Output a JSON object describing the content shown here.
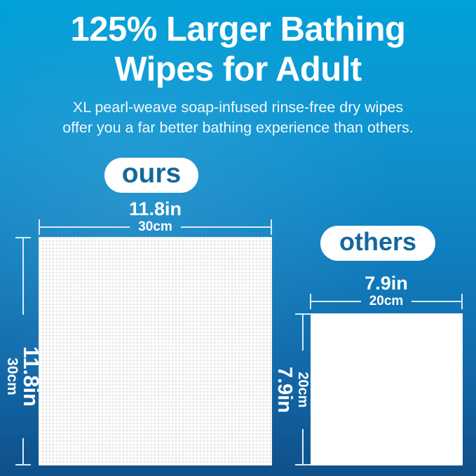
{
  "header": {
    "title_lines": [
      "125% Larger Bathing",
      "Wipes for Adult"
    ],
    "subtitle_lines": [
      "XL pearl-weave soap-infused rinse-free dry wipes",
      "offer you a far better bathing experience than others."
    ]
  },
  "ours": {
    "label": "ours",
    "width": {
      "inches": "11.8in",
      "metric": "30cm"
    },
    "height": {
      "inches": "11.8in",
      "metric": "30cm"
    }
  },
  "others": {
    "label": "others",
    "width": {
      "inches": "7.9in",
      "metric": "20cm"
    },
    "height": {
      "inches": "7.9in",
      "metric": "20cm"
    }
  },
  "colors": {
    "background_top": "#01a1d9",
    "background_bottom": "#0f5089",
    "badge_background": "#ffffff",
    "badge_text": "#15679e",
    "title_text": "#ffffff",
    "dimension_line": "#d6ecfa",
    "wipe_ours_texture": "#eaeaea",
    "wipe_surface": "#ffffff"
  }
}
